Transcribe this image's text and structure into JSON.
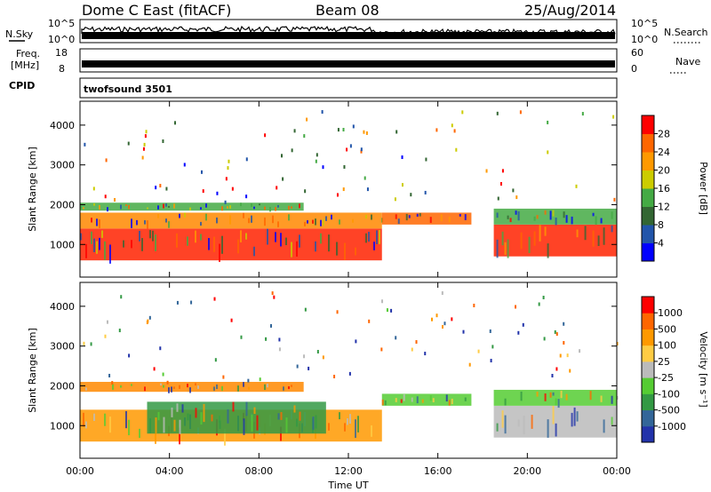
{
  "header": {
    "station": "Dome C East (fitACF)",
    "beam": "Beam 08",
    "date": "25/Aug/2014"
  },
  "strip_labels": {
    "nsky": "N.Sky",
    "nsky_ticks": [
      "10^5",
      "10^0"
    ],
    "nsearch": "N.Search",
    "nsearch_ticks": [
      "10^5",
      "10^0"
    ],
    "freq": "Freq.",
    "freq_unit": "[MHz]",
    "freq_ticks": [
      "18",
      "8"
    ],
    "nave": "Nave",
    "nave_ticks": [
      "60",
      "0"
    ],
    "cpid": "CPID",
    "cpid_value": "twofsound 3501"
  },
  "chart_data": [
    {
      "type": "heatmap",
      "name": "power",
      "ylabel": "Slant Range [km]",
      "xlabel": "",
      "x_ticks": [
        "00:00",
        "04:00",
        "08:00",
        "12:00",
        "16:00",
        "20:00",
        "00:00"
      ],
      "xlim_hours": [
        0,
        24
      ],
      "y_ticks": [
        1000,
        2000,
        3000,
        4000
      ],
      "ylim": [
        180,
        4600
      ],
      "colorbar": {
        "label": "Power [dB]",
        "ticks": [
          "4",
          "8",
          "12",
          "16",
          "20",
          "24",
          "28"
        ],
        "colors": [
          "#0000ff",
          "#2255aa",
          "#336633",
          "#44aa44",
          "#cccc00",
          "#ff9900",
          "#ff6600",
          "#ff0000"
        ]
      },
      "bands": [
        {
          "hours": [
            0,
            13.5
          ],
          "range_km": [
            600,
            1400
          ],
          "level": "high",
          "color": "#ff2200"
        },
        {
          "hours": [
            0,
            13.5
          ],
          "range_km": [
            1400,
            1800
          ],
          "level": "mid",
          "color": "#ff8800"
        },
        {
          "hours": [
            0,
            10
          ],
          "range_km": [
            1850,
            2050
          ],
          "level": "low",
          "color": "#44aa44"
        },
        {
          "hours": [
            13.5,
            17.5
          ],
          "range_km": [
            1500,
            1800
          ],
          "level": "mid",
          "color": "#ff6600"
        },
        {
          "hours": [
            18.5,
            24
          ],
          "range_km": [
            700,
            1500
          ],
          "level": "high",
          "color": "#ff2200"
        },
        {
          "hours": [
            18.5,
            24
          ],
          "range_km": [
            1500,
            1900
          ],
          "level": "low",
          "color": "#44aa44"
        }
      ]
    },
    {
      "type": "heatmap",
      "name": "velocity",
      "ylabel": "Slant Range [km]",
      "xlabel": "Time UT",
      "x_ticks": [
        "00:00",
        "04:00",
        "08:00",
        "12:00",
        "16:00",
        "20:00",
        "00:00"
      ],
      "xlim_hours": [
        0,
        24
      ],
      "y_ticks": [
        1000,
        2000,
        3000,
        4000
      ],
      "ylim": [
        180,
        4600
      ],
      "colorbar": {
        "label": "Velocity [m s⁻¹]",
        "ticks": [
          "1000",
          "500",
          "100",
          "25",
          "-25",
          "-100",
          "-500",
          "-1000"
        ],
        "colors": [
          "#2233aa",
          "#336699",
          "#339944",
          "#55cc33",
          "#bbbbbb",
          "#ffcc44",
          "#ff9900",
          "#ff6600",
          "#ff0000"
        ]
      },
      "bands": [
        {
          "hours": [
            0,
            13.5
          ],
          "range_km": [
            600,
            1400
          ],
          "level": "neg",
          "color": "#ff9900"
        },
        {
          "hours": [
            3,
            11
          ],
          "range_km": [
            800,
            1600
          ],
          "level": "mix",
          "color": "#339944"
        },
        {
          "hours": [
            0,
            10
          ],
          "range_km": [
            1850,
            2100
          ],
          "level": "neg",
          "color": "#ff8800"
        },
        {
          "hours": [
            13.5,
            17.5
          ],
          "range_km": [
            1500,
            1800
          ],
          "level": "pos",
          "color": "#55cc33"
        },
        {
          "hours": [
            18.5,
            24
          ],
          "range_km": [
            700,
            1500
          ],
          "level": "zero",
          "color": "#bbbbbb"
        },
        {
          "hours": [
            18.5,
            24
          ],
          "range_km": [
            1500,
            1900
          ],
          "level": "pos",
          "color": "#55cc33"
        }
      ]
    }
  ]
}
